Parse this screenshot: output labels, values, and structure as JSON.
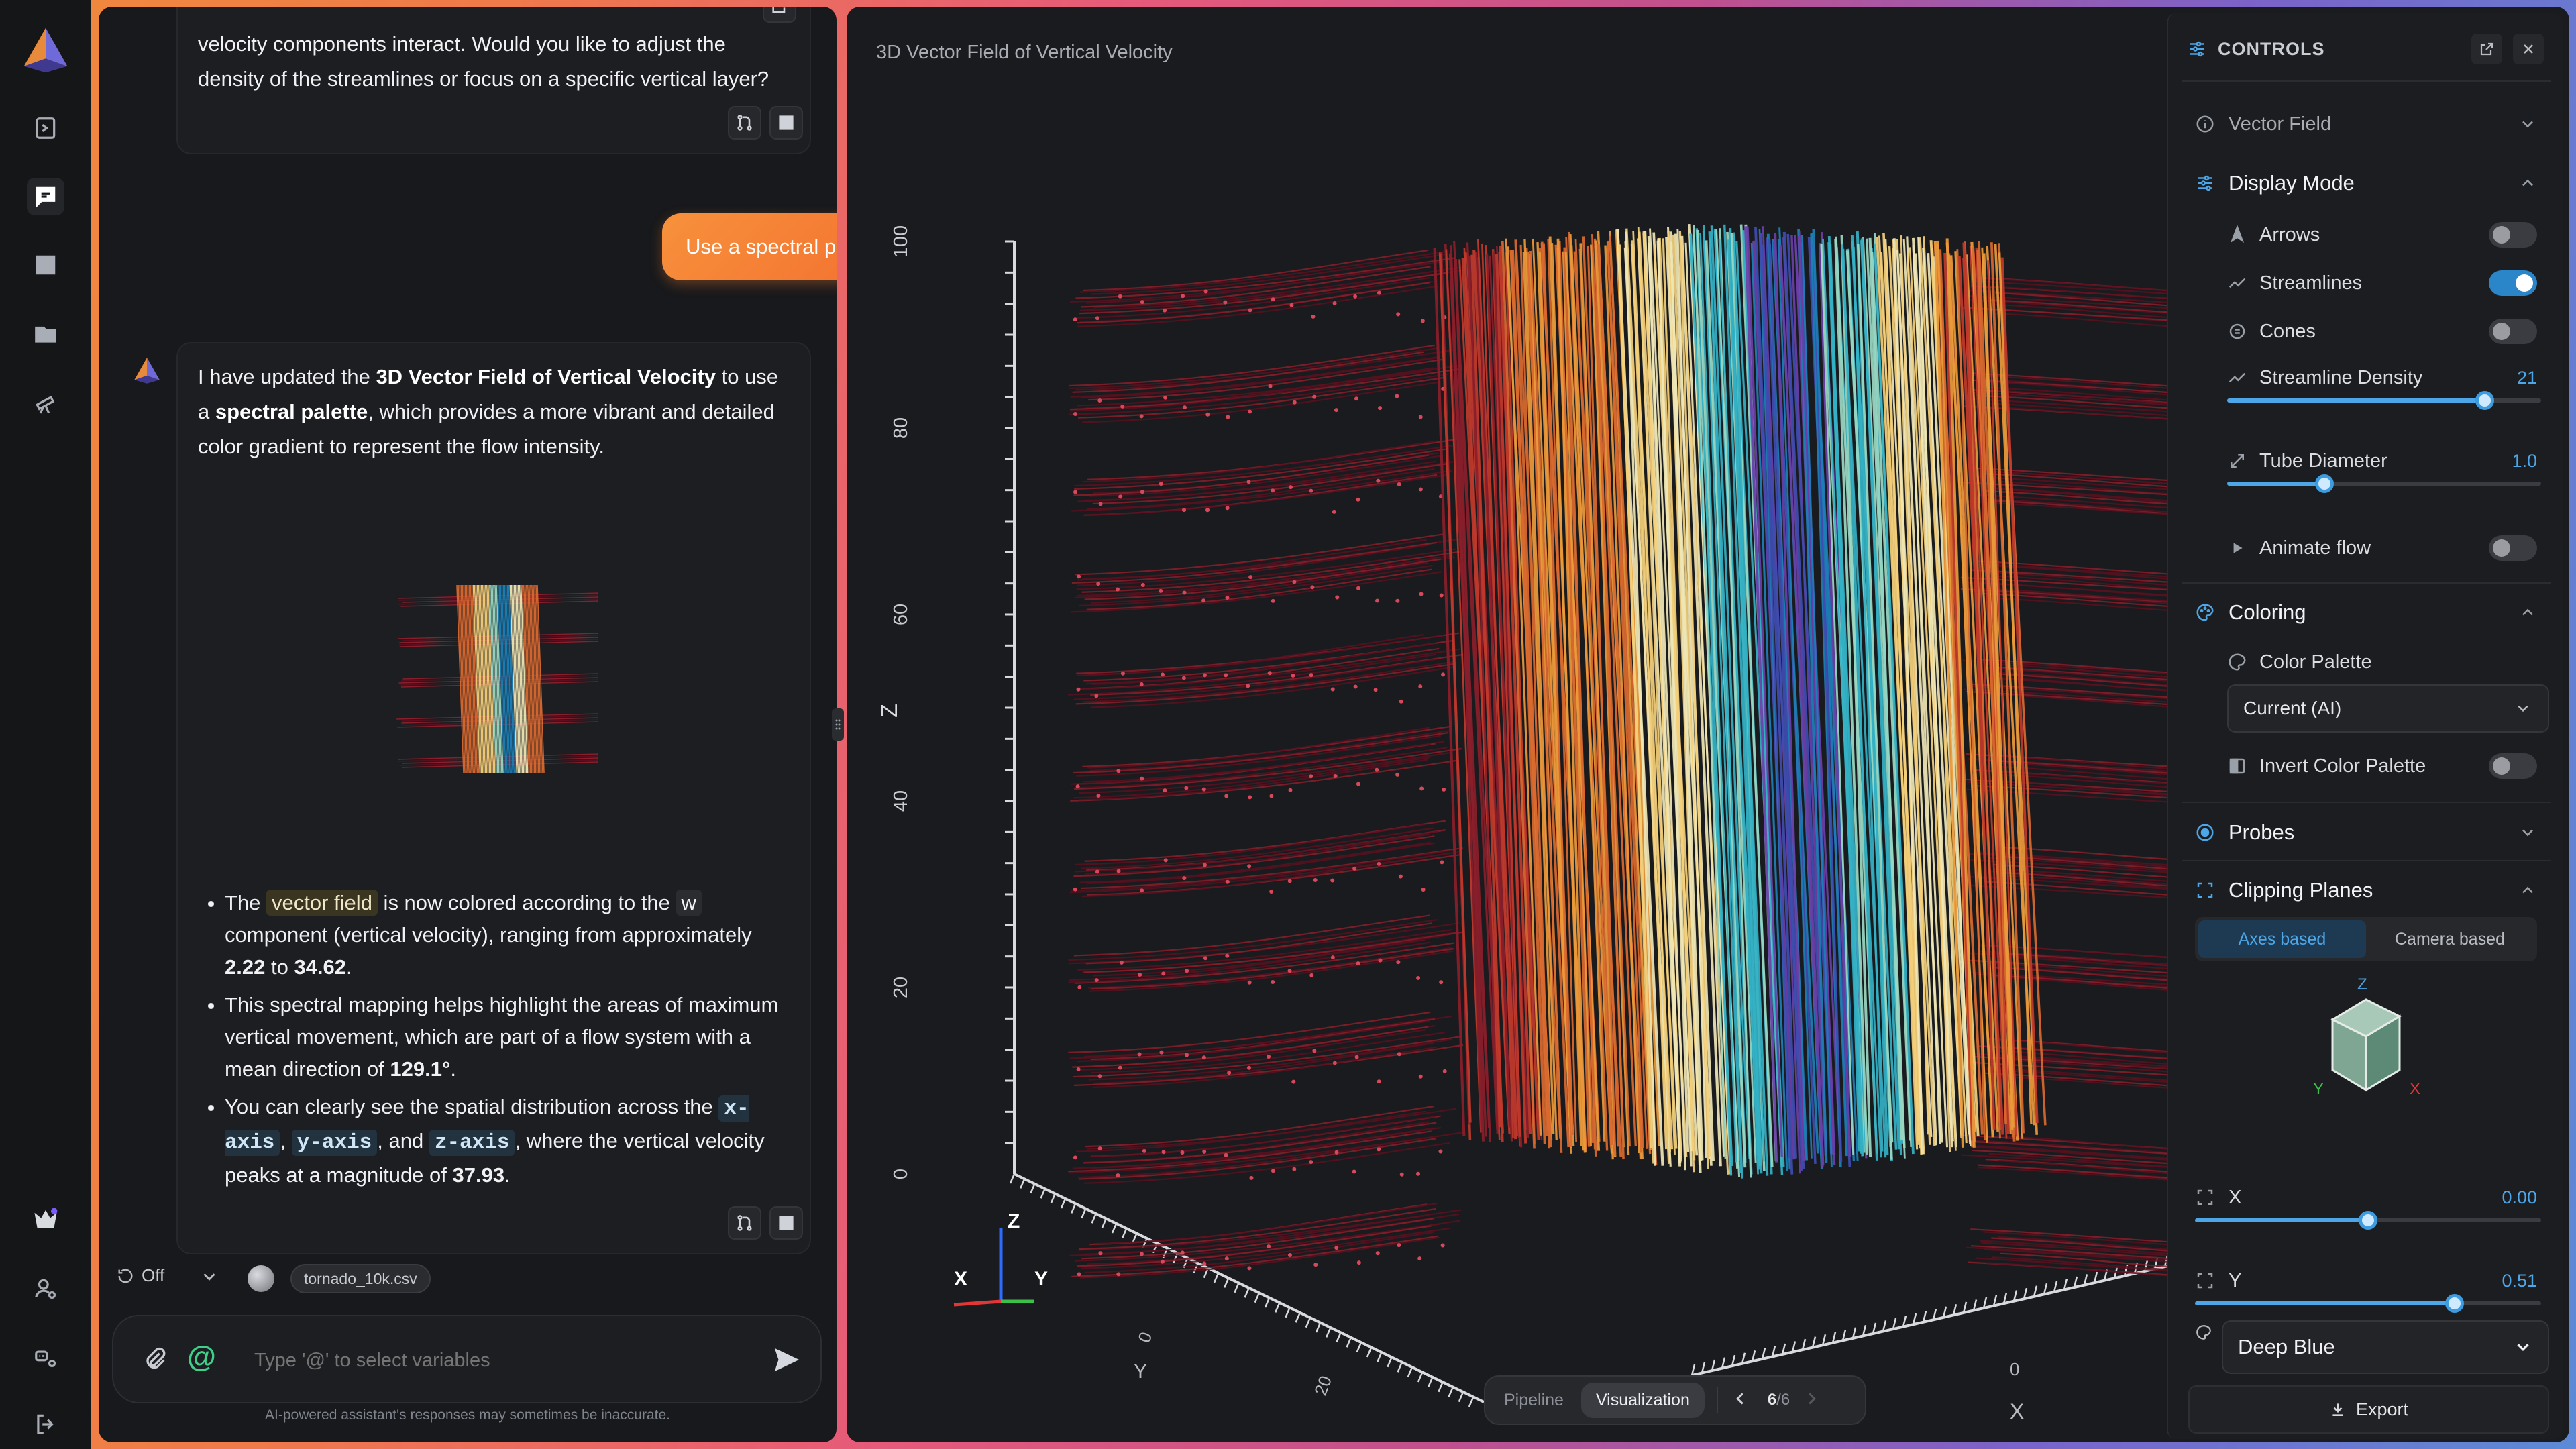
{
  "sidebar": {
    "items": [
      {
        "name": "logo"
      },
      {
        "name": "new-page-icon"
      },
      {
        "name": "chat-icon",
        "active": true
      },
      {
        "name": "dashboard-icon"
      },
      {
        "name": "folder-icon"
      },
      {
        "name": "telescope-icon"
      },
      {
        "name": "crown-icon"
      },
      {
        "name": "user-settings-icon"
      },
      {
        "name": "bot-icon"
      },
      {
        "name": "logout-icon"
      }
    ]
  },
  "chat": {
    "prev_message": "velocity components interact. Would you like to adjust the density of the streamlines or focus on a specific vertical layer?",
    "user_message": "Use a spectral palette",
    "assistant": {
      "p1_a": "I have updated the ",
      "p1_b": "3D Vector Field of Vertical Velocity",
      "p1_c": " to use a ",
      "p1_d": "spectral palette",
      "p1_e": ", which provides a more vibrant and detailed color gradient to represent the flow intensity.",
      "b1_a": "The ",
      "b1_tag": "vector field",
      "b1_b": " is now colored according to the ",
      "b1_w": "w",
      "b1_c": " component (vertical velocity), ranging from approximately ",
      "b1_min": "2.22",
      "b1_to": " to ",
      "b1_max": "34.62",
      "b1_end": ".",
      "b2_a": "This spectral mapping helps highlight the areas of maximum vertical movement, which are part of a flow system with a mean direction of ",
      "b2_dir": "129.1°",
      "b2_end": ".",
      "b3_a": "You can clearly see the spatial distribution across the ",
      "b3_x": "x-axis",
      "b3_b": ", ",
      "b3_y": "y-axis",
      "b3_c": ", and ",
      "b3_z": "z-axis",
      "b3_d": ", where the vertical velocity peaks at a magnitude of ",
      "b3_peak": "37.93",
      "b3_end": "."
    },
    "footer": {
      "off_label": "Off",
      "file_chip": "tornado_10k.csv",
      "input_placeholder": "Type '@' to select variables",
      "disclaimer": "AI-powered assistant's responses may sometimes be inaccurate."
    }
  },
  "viz": {
    "title": "3D Vector Field of Vertical Velocity",
    "z_axis_label": "Z",
    "z_ticks": [
      "100",
      "80",
      "60",
      "40",
      "20",
      "0"
    ],
    "x_axis_label": "X",
    "y_axis_label": "Y",
    "floor_ticks": [
      "0",
      "20",
      "0",
      "0"
    ],
    "triad": {
      "x": "X",
      "y": "Y",
      "z": "Z"
    },
    "bottom_bar": {
      "pipeline": "Pipeline",
      "visualization": "Visualization",
      "page": "6",
      "total": "/6"
    },
    "palette_colors": [
      "#5a1020",
      "#8a1e2a",
      "#c0392b",
      "#d9692f",
      "#ec9a3a",
      "#f4cf7a",
      "#efe6b5",
      "#9ad8c2",
      "#33b1c4",
      "#1c7fb6",
      "#3f4db0",
      "#6a3fa8"
    ]
  },
  "controls": {
    "title": "CONTROLS",
    "vector_field": "Vector Field",
    "display_mode": "Display Mode",
    "arrows": "Arrows",
    "streamlines": "Streamlines",
    "cones": "Cones",
    "streamline_density": "Streamline Density",
    "streamline_density_value": "21",
    "streamline_density_fraction": 0.82,
    "tube_diameter": "Tube Diameter",
    "tube_diameter_value": "1.0",
    "tube_diameter_fraction": 0.31,
    "animate_flow": "Animate flow",
    "coloring": "Coloring",
    "color_palette": "Color Palette",
    "color_palette_value": "Current (AI)",
    "invert_palette": "Invert Color Palette",
    "probes": "Probes",
    "clipping_planes": "Clipping Planes",
    "axes_based": "Axes based",
    "camera_based": "Camera based",
    "cube_z": "Z",
    "cube_y": "Y",
    "cube_x": "X",
    "clip_x_label": "X",
    "clip_x_value": "0.00",
    "clip_x_fraction": 0.5,
    "clip_y_label": "Y",
    "clip_y_value": "0.51",
    "clip_y_fraction": 0.75,
    "theme_select": "Deep Blue",
    "export": "Export",
    "accent": "#4ca6e8"
  }
}
